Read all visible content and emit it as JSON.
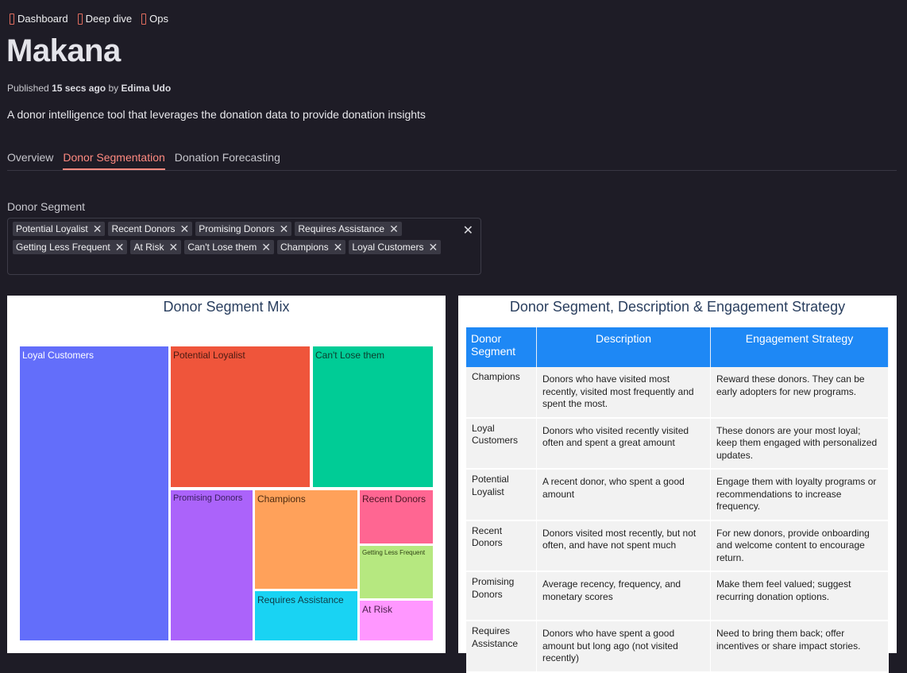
{
  "tags": [
    {
      "label": "Dashboard"
    },
    {
      "label": "Deep dive"
    },
    {
      "label": "Ops"
    }
  ],
  "app": {
    "title": "Makana",
    "published_prefix": "Published",
    "published_time": "15 secs ago",
    "published_by_prefix": "by",
    "author": "Edima Udo",
    "description": "A donor intelligence tool that leverages the donation data to provide donation insights"
  },
  "tabs": [
    {
      "label": "Overview",
      "active": false
    },
    {
      "label": "Donor Segmentation",
      "active": true
    },
    {
      "label": "Donation Forecasting",
      "active": false
    }
  ],
  "filter": {
    "label": "Donor Segment",
    "selected": [
      "Potential Loyalist",
      "Recent Donors",
      "Promising Donors",
      "Requires Assistance",
      "Getting Less Frequent",
      "At Risk",
      "Can't Lose them",
      "Champions",
      "Loyal Customers"
    ],
    "chip_remove_glyph": "✕",
    "clear_glyph": "✕"
  },
  "treemap": {
    "title": "Donor Segment Mix",
    "cells": [
      {
        "label": "Loyal Customers",
        "color": "#636efa",
        "text_color": "#ffffff"
      },
      {
        "label": "Potential Loyalist",
        "color": "#ef553b",
        "text_color": "#4a1a12"
      },
      {
        "label": "Can't Lose them",
        "color": "#00cc96",
        "text_color": "#0b3d2e"
      },
      {
        "label": "Promising Donors",
        "color": "#ab63fa",
        "text_color": "#3a1f5e"
      },
      {
        "label": "Champions",
        "color": "#ffa15a",
        "text_color": "#4d2b10"
      },
      {
        "label": "Recent Donors",
        "color": "#ff6692",
        "text_color": "#4d1424"
      },
      {
        "label": "Getting Less Frequent",
        "color": "#b6e880",
        "text_color": "#2f4214"
      },
      {
        "label": "Requires Assistance",
        "color": "#19d3f3",
        "text_color": "#0f3d47"
      },
      {
        "label": "At Risk",
        "color": "#ff97ff",
        "text_color": "#4d1f4d"
      }
    ]
  },
  "strategy_table": {
    "title": "Donor Segment, Description & Engagement Strategy",
    "header_color": "#1e88f5",
    "headers": [
      "Donor Segment",
      "Description",
      "Engagement Strategy"
    ],
    "rows": [
      {
        "segment": "Champions",
        "description": "Donors who have visited most recently, visited most frequently and spent the most.",
        "strategy": "Reward these donors. They can be early adopters for new programs."
      },
      {
        "segment": "Loyal Customers",
        "description": "Donors who visited recently visited often and spent a great amount",
        "strategy": "These donors are your most loyal; keep them engaged with personalized updates."
      },
      {
        "segment": "Potential Loyalist",
        "description": "A recent donor, who spent a good amount",
        "strategy": "Engage them with loyalty programs or recommendations to increase frequency."
      },
      {
        "segment": "Recent Donors",
        "description": "Donors visited most recently, but not often, and have not spent much",
        "strategy": "For new donors, provide onboarding and welcome content to encourage return."
      },
      {
        "segment": "Promising Donors",
        "description": "Average recency, frequency, and monetary scores",
        "strategy": "Make them feel valued; suggest recurring donation options."
      },
      {
        "segment": "Requires Assistance",
        "description": "Donors who have spent a good amount but long ago (not visited recently)",
        "strategy": "Need to bring them back; offer incentives or share impact stories."
      }
    ]
  }
}
